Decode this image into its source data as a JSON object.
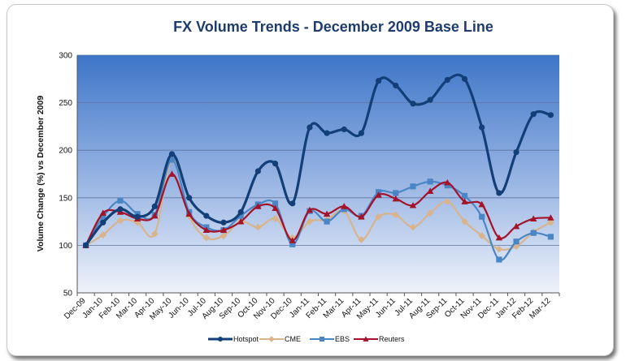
{
  "chart_data": {
    "type": "line",
    "title": "FX Volume Trends - December 2009 Base Line",
    "xlabel": "",
    "ylabel": "Volume Change (%) vs December 2009",
    "ylim": [
      50,
      300
    ],
    "yticks": [
      50,
      100,
      150,
      200,
      250,
      300
    ],
    "grid": true,
    "legend_position": "bottom",
    "categories": [
      "Dec-09",
      "Jan-10",
      "Feb-10",
      "Mar-10",
      "Apr-10",
      "May-10",
      "Jun-10",
      "Jul-10",
      "Aug-10",
      "Sep-10",
      "Oct-10",
      "Nov-10",
      "Dec-10",
      "Jan-11",
      "Feb-11",
      "Mar-11",
      "Apr-11",
      "May-11",
      "Jun-11",
      "Jul-11",
      "Aug-11",
      "Sep-11",
      "Oct-11",
      "Nov-11",
      "Dec-11",
      "Jan-12",
      "Feb-12",
      "Mar-12"
    ],
    "series": [
      {
        "name": "Hotspot",
        "color": "#123f77",
        "marker": "circle",
        "values": [
          100,
          124,
          138,
          130,
          141,
          196,
          150,
          131,
          124,
          135,
          178,
          186,
          144,
          224,
          218,
          222,
          218,
          273,
          268,
          249,
          253,
          274,
          275,
          224,
          155,
          198,
          238,
          237
        ]
      },
      {
        "name": "CME",
        "color": "#d8b48c",
        "marker": "diamond",
        "values": [
          100,
          111,
          126,
          124,
          112,
          190,
          131,
          108,
          110,
          125,
          119,
          128,
          108,
          125,
          127,
          136,
          106,
          130,
          132,
          119,
          134,
          146,
          125,
          110,
          96,
          99,
          114,
          124
        ]
      },
      {
        "name": "EBS",
        "color": "#4a86c5",
        "marker": "square",
        "values": [
          100,
          130,
          147,
          133,
          132,
          190,
          135,
          119,
          116,
          131,
          143,
          144,
          101,
          136,
          125,
          138,
          131,
          156,
          155,
          162,
          167,
          163,
          152,
          130,
          85,
          104,
          113,
          109
        ]
      },
      {
        "name": "Reuters",
        "color": "#a3132a",
        "marker": "triangle",
        "values": [
          100,
          134,
          135,
          128,
          131,
          175,
          133,
          116,
          116,
          125,
          141,
          139,
          105,
          137,
          133,
          141,
          130,
          153,
          149,
          142,
          157,
          166,
          146,
          143,
          108,
          120,
          128,
          129
        ]
      }
    ]
  }
}
